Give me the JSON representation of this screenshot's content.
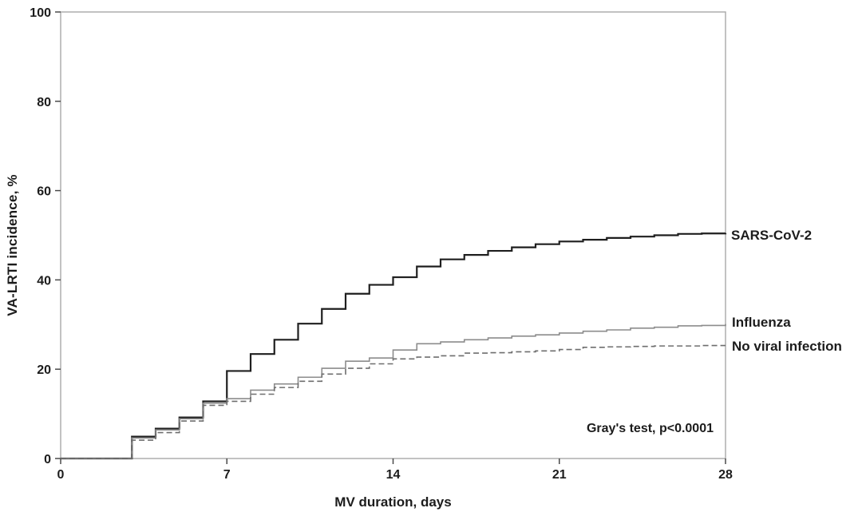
{
  "figure": {
    "y_axis_title": "VA-LRTI incidence, %",
    "x_axis_title": "MV duration, days",
    "annotation": "Gray's test, p<0.0001",
    "background_color": "#ffffff",
    "frame_color": "#a8a8a8",
    "tick_color": "#4a4a4a",
    "text_color": "#1c1c1c"
  },
  "chart_data": {
    "type": "line",
    "subtype": "cumulative-incidence-step",
    "title": "",
    "xlabel": "MV duration, days",
    "ylabel": "VA-LRTI incidence, %",
    "xlim": [
      0,
      28
    ],
    "ylim": [
      0,
      100
    ],
    "x_ticks": [
      0,
      7,
      14,
      21,
      28
    ],
    "y_ticks": [
      0,
      20,
      40,
      60,
      80,
      100
    ],
    "grid": false,
    "legend_position": "right-of-curve-ends",
    "annotation": "Gray's test, p<0.0001",
    "x_days": [
      0,
      1,
      2,
      3,
      4,
      5,
      6,
      7,
      8,
      9,
      10,
      11,
      12,
      13,
      14,
      15,
      16,
      17,
      18,
      19,
      20,
      21,
      22,
      23,
      24,
      25,
      26,
      27,
      28
    ],
    "series": [
      {
        "name": "SARS-CoV-2",
        "line_style": "solid",
        "color": "#1f1f1f",
        "stroke_width": 2.2,
        "values": [
          0,
          0,
          0,
          4.9,
          6.7,
          9.2,
          12.8,
          19.6,
          23.4,
          26.6,
          30.2,
          33.5,
          36.9,
          38.9,
          40.6,
          43.0,
          44.6,
          45.6,
          46.5,
          47.3,
          48.0,
          48.6,
          49.0,
          49.4,
          49.7,
          50.0,
          50.3,
          50.4,
          50.5
        ]
      },
      {
        "name": "Influenza",
        "line_style": "solid",
        "color": "#8c8c8c",
        "stroke_width": 1.6,
        "values": [
          0,
          0,
          0,
          4.6,
          6.4,
          8.9,
          12.4,
          13.4,
          15.3,
          16.7,
          18.2,
          20.2,
          21.8,
          22.5,
          24.3,
          25.7,
          26.1,
          26.6,
          27.0,
          27.4,
          27.7,
          28.1,
          28.5,
          28.8,
          29.2,
          29.4,
          29.7,
          29.8,
          30.1
        ]
      },
      {
        "name": "No viral infection",
        "line_style": "dashed",
        "color": "#6e6e6e",
        "stroke_width": 1.6,
        "values": [
          0,
          0,
          0,
          4.1,
          5.8,
          8.4,
          11.9,
          12.8,
          14.4,
          15.9,
          17.3,
          18.9,
          20.2,
          21.2,
          22.3,
          22.7,
          23.0,
          23.6,
          23.7,
          23.9,
          24.1,
          24.4,
          24.9,
          25.0,
          25.1,
          25.2,
          25.2,
          25.3,
          25.3
        ]
      }
    ]
  }
}
